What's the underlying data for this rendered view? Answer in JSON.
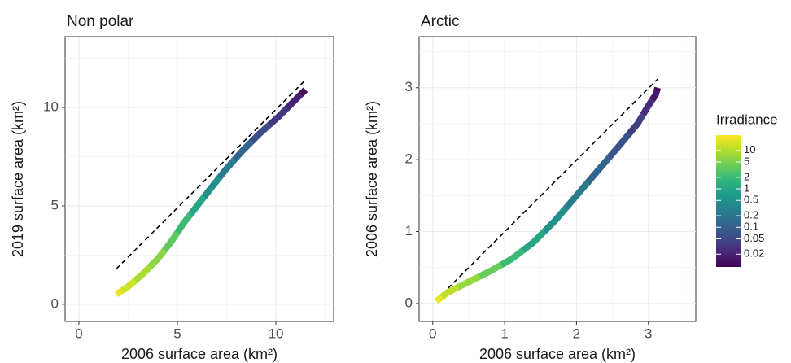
{
  "chart_data": [
    {
      "type": "line",
      "title": "Non polar",
      "x_label": "2006 surface area (km²)",
      "y_label": "2019 surface area (km²)",
      "xlim": [
        -0.7,
        12.93
      ],
      "ylim": [
        -0.875,
        13.6
      ],
      "xticks": [
        0,
        5,
        10
      ],
      "yticks": [
        0,
        5,
        10
      ],
      "grid": true,
      "reference_line": {
        "style": "dashed",
        "color": "#000000",
        "x": [
          1.9,
          11.5
        ],
        "values": [
          1.8,
          11.4
        ]
      },
      "series": [
        {
          "x": [
            1.9,
            2.5,
            3.2,
            4.0,
            4.7,
            5.3,
            6.0,
            6.7,
            7.5,
            8.3,
            9.2,
            10.1,
            11.0,
            11.5
          ],
          "values": [
            0.5,
            0.9,
            1.5,
            2.3,
            3.2,
            4.1,
            5.0,
            5.9,
            6.9,
            7.8,
            8.7,
            9.5,
            10.4,
            10.9
          ],
          "irradiance": [
            20,
            14,
            9,
            6,
            3.5,
            2,
            1,
            0.5,
            0.25,
            0.12,
            0.06,
            0.035,
            0.02,
            0.012
          ]
        }
      ]
    },
    {
      "type": "line",
      "title": "Arctic",
      "x_label": "2006 surface area (km²)",
      "y_label": "2006 surface area (km²)",
      "xlim": [
        -0.19,
        3.66
      ],
      "ylim": [
        -0.25,
        3.71
      ],
      "xticks": [
        0,
        1,
        2,
        3
      ],
      "yticks": [
        0,
        1,
        2,
        3
      ],
      "grid": true,
      "reference_line": {
        "style": "dashed",
        "color": "#000000",
        "x": [
          0.05,
          3.13
        ],
        "values": [
          0.05,
          3.12
        ]
      },
      "series": [
        {
          "x": [
            0.05,
            0.2,
            0.5,
            0.8,
            1.1,
            1.4,
            1.7,
            2.0,
            2.3,
            2.6,
            2.85,
            3.0,
            3.1,
            3.13
          ],
          "values": [
            0.03,
            0.15,
            0.3,
            0.45,
            0.62,
            0.85,
            1.15,
            1.5,
            1.85,
            2.2,
            2.5,
            2.75,
            2.9,
            3.0
          ],
          "irradiance": [
            20,
            12,
            7,
            4,
            2,
            1,
            0.5,
            0.25,
            0.12,
            0.07,
            0.04,
            0.025,
            0.015,
            0.01
          ]
        }
      ]
    }
  ],
  "colorbar": {
    "title": "Irradiance",
    "log": true,
    "lim": [
      0.0093,
      25
    ],
    "ticks": [
      10,
      5,
      2,
      1,
      0.5,
      0.2,
      0.1,
      0.05,
      0.02
    ]
  }
}
